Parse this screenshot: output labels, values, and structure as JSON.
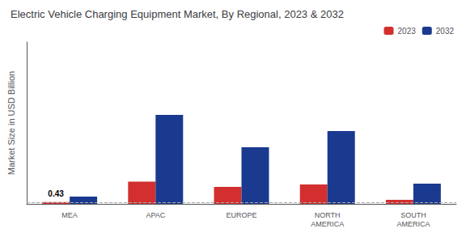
{
  "chart_data": {
    "type": "bar",
    "title": "Electric Vehicle Charging Equipment Market, By Regional, 2023 & 2032",
    "ylabel": "Market Size in USD Billion",
    "categories": [
      "MEA",
      "APAC",
      "EUROPE",
      "NORTH\nAMERICA",
      "SOUTH\nAMERICA"
    ],
    "series": [
      {
        "name": "2023",
        "color": "#d32f2f",
        "values": [
          0.43,
          5.5,
          4.2,
          4.8,
          1.0
        ]
      },
      {
        "name": "2032",
        "color": "#1a3a8f",
        "values": [
          1.8,
          22.0,
          14.0,
          18.0,
          5.0
        ]
      }
    ],
    "ylim": [
      0,
      40
    ],
    "yticks": [],
    "tick_labels": "x",
    "grid": false,
    "legend": "upper right",
    "reference_line": 0.43,
    "annotations": [
      {
        "text": "0.43",
        "category": "MEA",
        "series": "2023"
      }
    ]
  }
}
